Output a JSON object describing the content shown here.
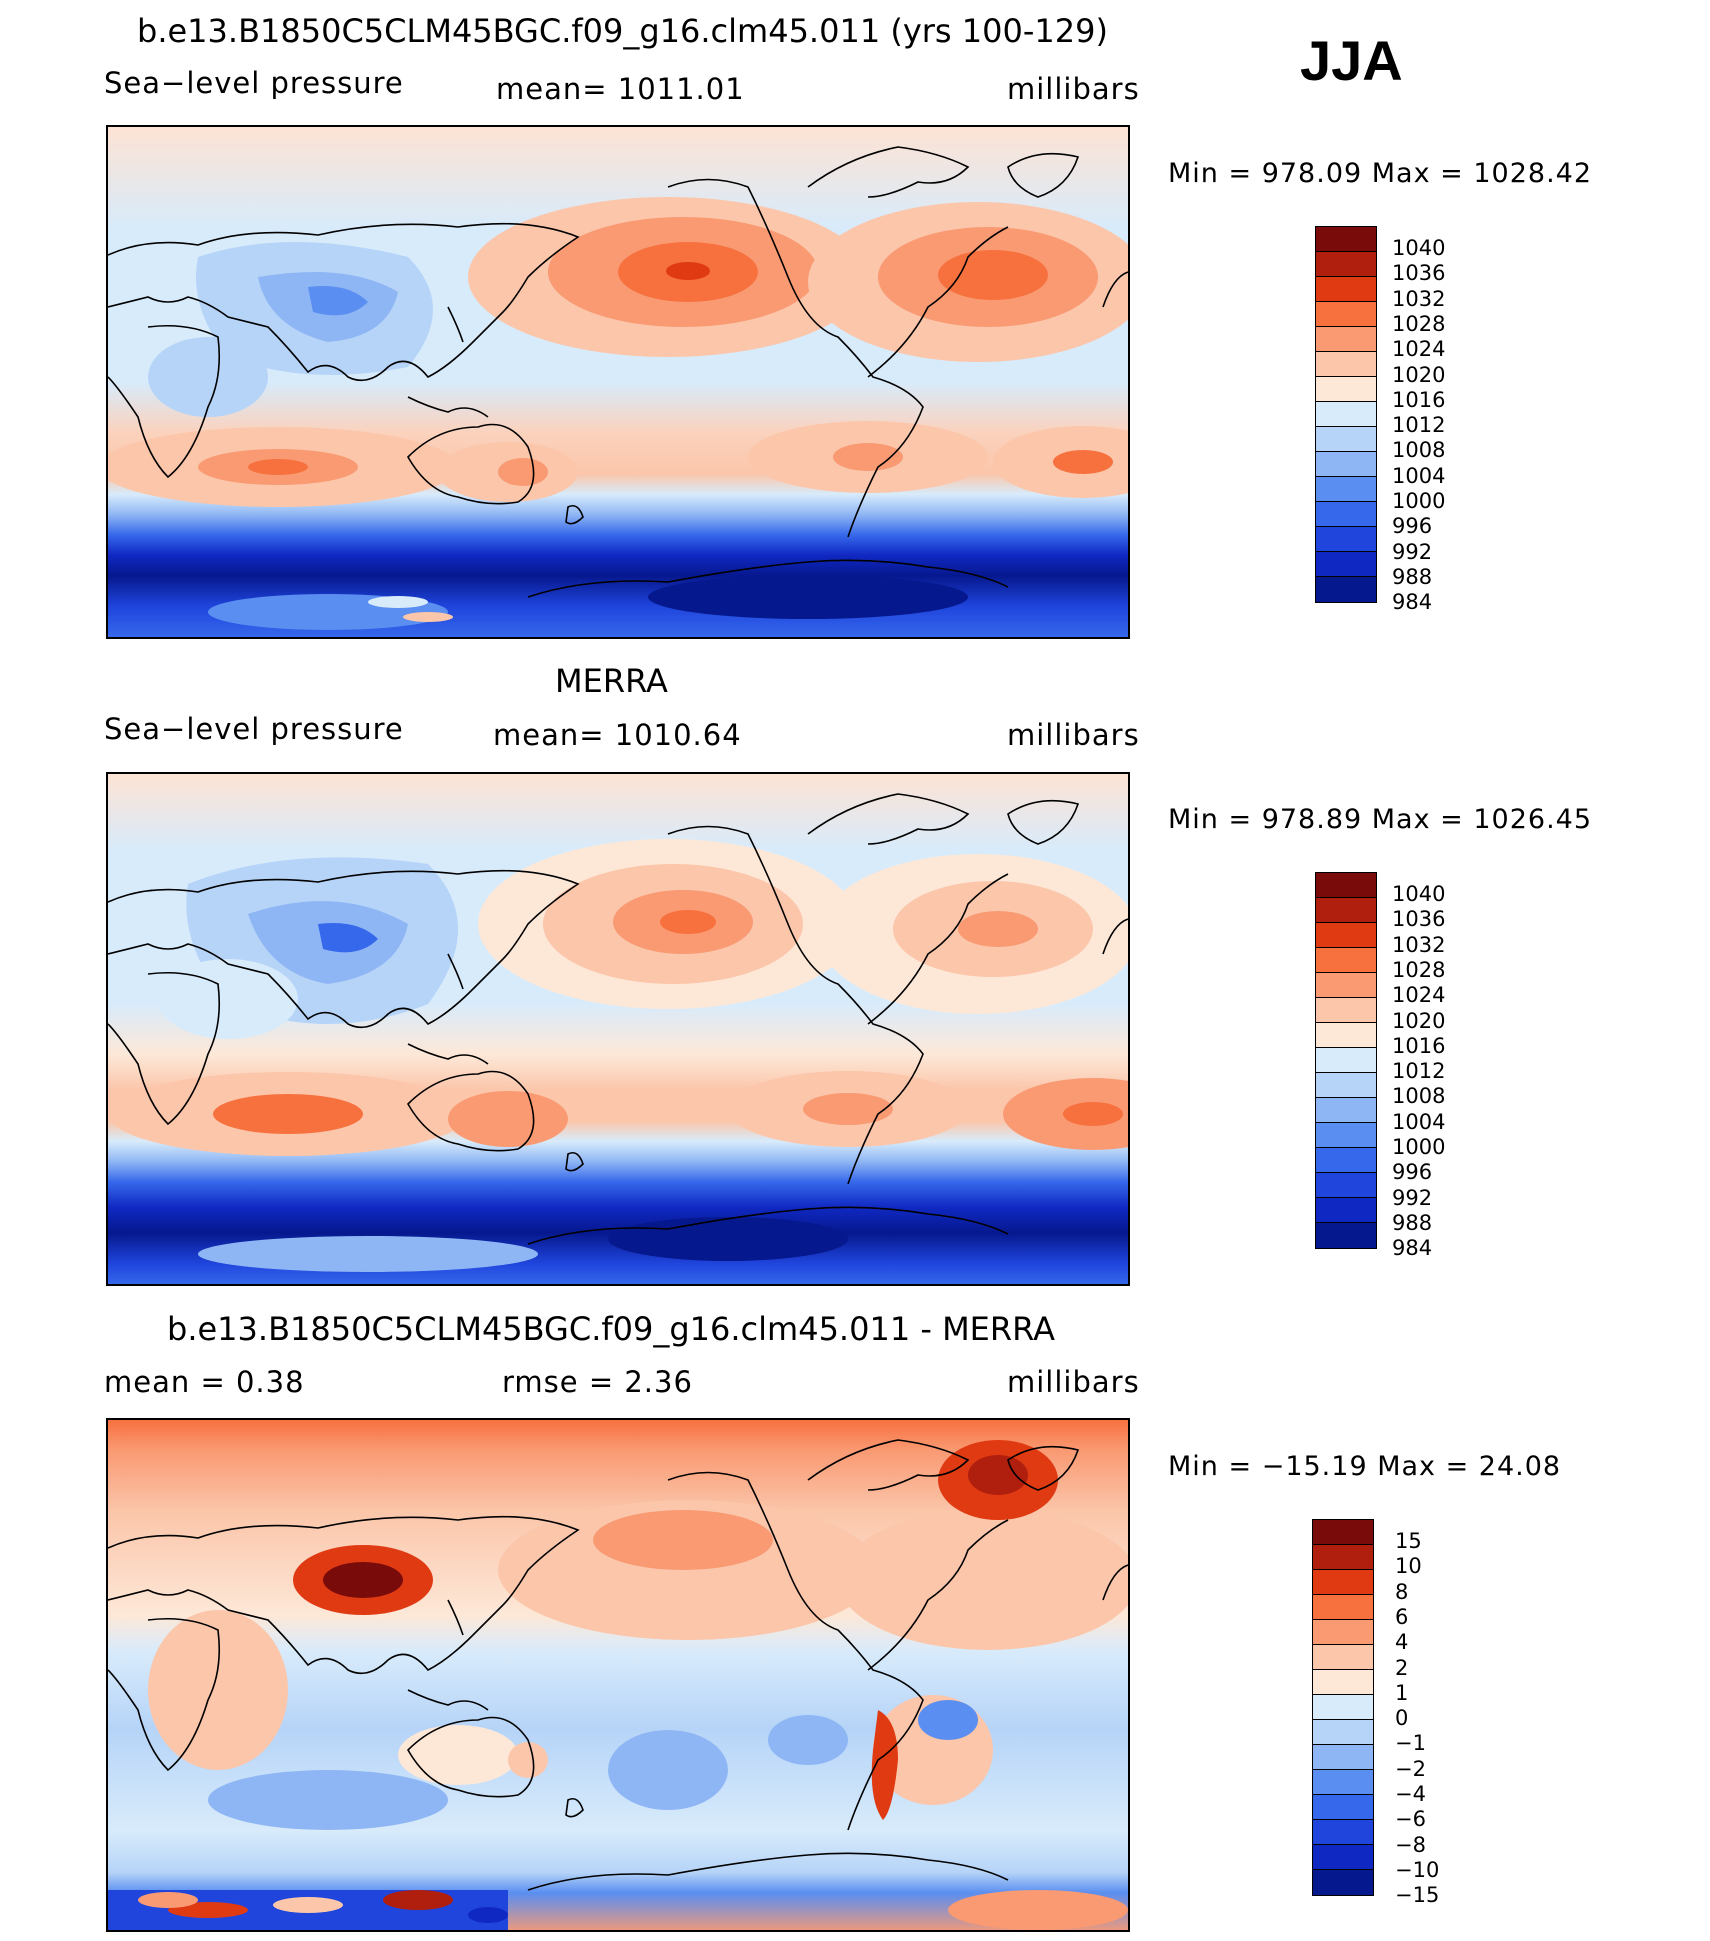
{
  "season": "JJA",
  "panels": [
    {
      "title": "b.e13.B1850C5CLM45BGC.f09_g16.clm45.011 (yrs 100-129)",
      "left_label": "Sea−level pressure",
      "center_label": "mean=  1011.01",
      "right_label": "millibars",
      "minmax": "Min  =  978.09  Max  =  1028.42",
      "colorbar": {
        "labels": [
          "1040",
          "1036",
          "1032",
          "1028",
          "1024",
          "1020",
          "1016",
          "1012",
          "1008",
          "1004",
          "1000",
          "996",
          "992",
          "988",
          "984"
        ],
        "colors": [
          "#7a0b0b",
          "#b01e0e",
          "#e03a13",
          "#f7713f",
          "#f99a73",
          "#fbc6aa",
          "#fde8d8",
          "#d8ebfb",
          "#b6d4f8",
          "#8fb6f4",
          "#5a8ef0",
          "#3668eb",
          "#1f45dd",
          "#1028c2",
          "#06188e"
        ]
      }
    },
    {
      "title": "MERRA",
      "left_label": "Sea−level pressure",
      "center_label": "mean=  1010.64",
      "right_label": "millibars",
      "minmax": "Min  =  978.89  Max  =  1026.45",
      "colorbar": {
        "labels": [
          "1040",
          "1036",
          "1032",
          "1028",
          "1024",
          "1020",
          "1016",
          "1012",
          "1008",
          "1004",
          "1000",
          "996",
          "992",
          "988",
          "984"
        ],
        "colors": [
          "#7a0b0b",
          "#b01e0e",
          "#e03a13",
          "#f7713f",
          "#f99a73",
          "#fbc6aa",
          "#fde8d8",
          "#d8ebfb",
          "#b6d4f8",
          "#8fb6f4",
          "#5a8ef0",
          "#3668eb",
          "#1f45dd",
          "#1028c2",
          "#06188e"
        ]
      }
    },
    {
      "title": "b.e13.B1850C5CLM45BGC.f09_g16.clm45.011 - MERRA",
      "left_label": "mean  =     0.38",
      "center_label": "rmse  =     2.36",
      "right_label": "millibars",
      "minmax": "Min  =  −15.19  Max  =    24.08",
      "colorbar": {
        "labels": [
          "15",
          "10",
          "8",
          "6",
          "4",
          "2",
          "1",
          "0",
          "−1",
          "−2",
          "−4",
          "−6",
          "−8",
          "−10",
          "−15"
        ],
        "colors": [
          "#7a0b0b",
          "#b01e0e",
          "#e03a13",
          "#f7713f",
          "#f99a73",
          "#fbc6aa",
          "#fde8d8",
          "#d8ebfb",
          "#b6d4f8",
          "#8fb6f4",
          "#5a8ef0",
          "#3668eb",
          "#1f45dd",
          "#1028c2",
          "#06188e"
        ]
      }
    }
  ]
}
